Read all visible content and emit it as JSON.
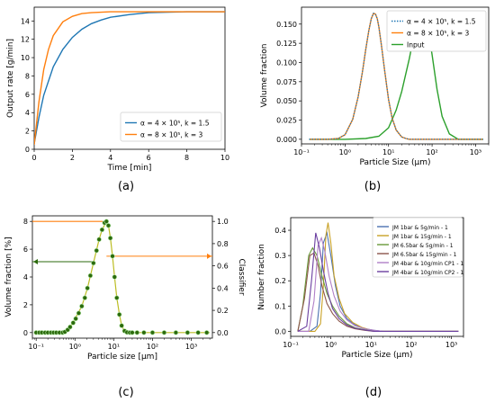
{
  "captions": [
    "(a)",
    "(b)",
    "(c)",
    "(d)"
  ],
  "legend_text": {
    "a": [
      "α = 4 × 10⁵, k = 1.5",
      "α = 8 × 10⁵, k = 3"
    ],
    "b": [
      "α = 4 × 10⁵, k = 1.5",
      "α = 8 × 10⁵, k = 3",
      "Input"
    ]
  },
  "chart_data": [
    {
      "id": "a",
      "type": "line",
      "title": "",
      "xlabel": "Time [min]",
      "ylabel": "Output rate [g/min]",
      "xlim": [
        0,
        10
      ],
      "ylim": [
        0,
        15.5
      ],
      "xticks": [
        0,
        2,
        4,
        6,
        8,
        10
      ],
      "yticks": [
        0,
        2,
        4,
        6,
        8,
        10,
        12,
        14
      ],
      "legend_position": "lower-right",
      "grid": false,
      "series": [
        {
          "name": "α = 4 × 10⁵, k = 1.5",
          "color": "#1f77b4",
          "x": [
            0,
            0.25,
            0.5,
            1,
            1.5,
            2,
            2.5,
            3,
            3.5,
            4,
            5,
            6,
            7,
            8,
            10
          ],
          "y": [
            0.6,
            3.5,
            5.9,
            9.0,
            10.9,
            12.2,
            13.1,
            13.7,
            14.1,
            14.4,
            14.7,
            14.9,
            14.95,
            15.0,
            15.0
          ]
        },
        {
          "name": "α = 8 × 10⁵, k = 3",
          "color": "#ff7f0e",
          "x": [
            0,
            0.25,
            0.5,
            0.75,
            1,
            1.5,
            2,
            2.5,
            3,
            4,
            5,
            6,
            8,
            10
          ],
          "y": [
            0.5,
            5.2,
            8.7,
            10.9,
            12.4,
            13.9,
            14.5,
            14.8,
            14.9,
            15.0,
            15.0,
            15.0,
            15.0,
            15.0
          ]
        }
      ]
    },
    {
      "id": "b",
      "type": "line",
      "title": "",
      "xlabel": "Particle Size (μm)",
      "ylabel": "Volume fraction",
      "xscale": "log",
      "xlim": [
        0.1,
        2000
      ],
      "ylim": [
        -0.006,
        0.172
      ],
      "xticks": [
        0.1,
        1,
        10,
        100,
        1000
      ],
      "xticklabels": [
        "10⁻¹",
        "10⁰",
        "10¹",
        "10²",
        "10³"
      ],
      "yticks": [
        0.0,
        0.025,
        0.05,
        0.075,
        0.1,
        0.125,
        0.15
      ],
      "yticklabels": [
        "0.000",
        "0.025",
        "0.050",
        "0.075",
        "0.100",
        "0.125",
        "0.150"
      ],
      "legend_position": "top-right",
      "grid": false,
      "series": [
        {
          "name": "α = 4 × 10⁵, k = 1.5",
          "color": "#1f77b4",
          "style": "dotted",
          "x": [
            0.15,
            0.4,
            0.7,
            1,
            1.5,
            2,
            2.5,
            3,
            3.5,
            4,
            4.5,
            5,
            5.5,
            6,
            7,
            8,
            10,
            12,
            15,
            20,
            25,
            30,
            40,
            1500
          ],
          "y": [
            0,
            0,
            0.001,
            0.006,
            0.026,
            0.055,
            0.087,
            0.117,
            0.141,
            0.157,
            0.164,
            0.163,
            0.157,
            0.146,
            0.119,
            0.093,
            0.052,
            0.028,
            0.012,
            0.003,
            0.001,
            0,
            0,
            0
          ]
        },
        {
          "name": "α = 8 × 10⁵, k = 3",
          "color": "#ff7f0e",
          "style": "solid",
          "x": [
            0.15,
            0.4,
            0.7,
            1,
            1.5,
            2,
            2.5,
            3,
            3.5,
            4,
            4.5,
            5,
            5.5,
            6,
            7,
            8,
            10,
            12,
            15,
            20,
            25,
            30,
            40,
            1500
          ],
          "y": [
            0,
            0,
            0.001,
            0.006,
            0.026,
            0.055,
            0.087,
            0.117,
            0.141,
            0.157,
            0.164,
            0.163,
            0.157,
            0.146,
            0.119,
            0.093,
            0.052,
            0.028,
            0.012,
            0.003,
            0.001,
            0,
            0,
            0
          ]
        },
        {
          "name": "Input",
          "color": "#2ca02c",
          "style": "solid",
          "x": [
            0.15,
            1,
            3,
            6,
            10,
            15,
            20,
            30,
            40,
            50,
            60,
            70,
            80,
            100,
            130,
            170,
            250,
            400,
            1500
          ],
          "y": [
            0,
            0,
            0.001,
            0.004,
            0.015,
            0.038,
            0.062,
            0.105,
            0.14,
            0.158,
            0.163,
            0.158,
            0.145,
            0.11,
            0.065,
            0.03,
            0.007,
            0,
            0
          ]
        }
      ]
    },
    {
      "id": "c",
      "type": "scatter",
      "title": "",
      "xlabel": "Particle size [μm]",
      "ylabel": "Volume fraction [%]",
      "y2label": "Classifier",
      "xscale": "log",
      "xlim": [
        0.08,
        3500
      ],
      "ylim": [
        -0.4,
        8.4
      ],
      "y2lim": [
        -0.05,
        1.05
      ],
      "xticks": [
        0.1,
        1,
        10,
        100,
        1000
      ],
      "xticklabels": [
        "10⁻¹",
        "10⁰",
        "10¹",
        "10²",
        "10³"
      ],
      "yticks": [
        0,
        2,
        4,
        6,
        8
      ],
      "y2ticks": [
        0.0,
        0.2,
        0.4,
        0.6,
        0.8,
        1.0
      ],
      "y2ticklabels": [
        "0.0",
        "0.2",
        "0.4",
        "0.6",
        "0.8",
        "1.0"
      ],
      "grid": false,
      "series": [
        {
          "name": "",
          "color": "#2b6a0c",
          "kind": "points",
          "x": [
            0.1,
            0.12,
            0.14,
            0.17,
            0.2,
            0.24,
            0.28,
            0.33,
            0.4,
            0.48,
            0.55,
            0.65,
            0.75,
            0.9,
            1.05,
            1.25,
            1.5,
            1.8,
            2.1,
            2.5,
            3.0,
            3.6,
            4.2,
            5.0,
            5.8,
            6.5,
            7.3,
            8.2,
            9.3,
            10.5,
            12,
            14,
            16,
            19,
            22,
            26,
            30,
            40,
            60,
            100,
            200,
            400,
            800,
            1500,
            2500
          ],
          "y": [
            0,
            0,
            0,
            0,
            0,
            0,
            0,
            0,
            0,
            0,
            0.05,
            0.2,
            0.4,
            0.7,
            1.0,
            1.4,
            1.9,
            2.5,
            3.2,
            4.1,
            5.0,
            5.9,
            6.7,
            7.4,
            7.9,
            8.0,
            7.7,
            6.8,
            5.5,
            4.0,
            2.5,
            1.3,
            0.5,
            0.12,
            0.02,
            0,
            0,
            0,
            0,
            0,
            0,
            0,
            0,
            0,
            0
          ]
        },
        {
          "name": "",
          "color": "#bcbd22",
          "kind": "line",
          "x": [
            0.5,
            0.75,
            1.0,
            1.5,
            2.1,
            3.0,
            4.2,
            5.0,
            6.5,
            7.3,
            8.2,
            9.3,
            10.5,
            12,
            14,
            16,
            19,
            22,
            26,
            3000
          ],
          "y": [
            0,
            0.4,
            1.0,
            1.9,
            3.2,
            5.0,
            6.7,
            7.4,
            8.0,
            7.7,
            6.8,
            5.5,
            4.0,
            2.5,
            1.3,
            0.5,
            0.12,
            0.02,
            0,
            0
          ]
        }
      ],
      "arrows": [
        {
          "direction": "left",
          "color": "#2b6a0c",
          "y": 5.1,
          "x_from": 3.2,
          "x_to": 0.08
        },
        {
          "direction": "right",
          "color": "#ff7f0e",
          "y": 5.5,
          "x_from": 6.5,
          "x_to": 3500
        }
      ],
      "classifier_line": {
        "color": "#ff7f0e",
        "y2": 1.0,
        "x_from": 0.08,
        "x_to": 5.2
      }
    },
    {
      "id": "d",
      "type": "line",
      "title": "",
      "xlabel": "Particle Size (μm)",
      "ylabel": "Number fraction",
      "xscale": "log",
      "xlim": [
        0.1,
        2000
      ],
      "ylim": [
        -0.02,
        0.45
      ],
      "xticks": [
        0.1,
        1,
        10,
        100,
        1000
      ],
      "xticklabels": [
        "10⁻¹",
        "10⁰",
        "10¹",
        "10²",
        "10³"
      ],
      "yticks": [
        0.0,
        0.1,
        0.2,
        0.3,
        0.4
      ],
      "yticklabels": [
        "0.0",
        "0.1",
        "0.2",
        "0.3",
        "0.4"
      ],
      "legend_position": "top-right",
      "grid": false,
      "series": [
        {
          "name": "JM 1bar &  5g/min - 1",
          "color": "#4c72b0",
          "x": [
            0.15,
            0.3,
            0.45,
            0.55,
            0.65,
            0.8,
            1.0,
            1.3,
            1.7,
            2.5,
            4,
            7,
            12,
            20,
            40,
            1500
          ],
          "y": [
            0,
            0,
            0.02,
            0.15,
            0.35,
            0.39,
            0.3,
            0.18,
            0.1,
            0.05,
            0.025,
            0.01,
            0.004,
            0,
            0,
            0
          ]
        },
        {
          "name": "JM 1bar &  15g/min - 1",
          "color": "#c9a227",
          "x": [
            0.15,
            0.4,
            0.55,
            0.65,
            0.75,
            0.85,
            1.0,
            1.2,
            1.6,
            2.2,
            3.5,
            6,
            10,
            16,
            40,
            1500
          ],
          "y": [
            0,
            0,
            0.03,
            0.18,
            0.38,
            0.43,
            0.35,
            0.22,
            0.13,
            0.07,
            0.035,
            0.015,
            0.005,
            0,
            0,
            0
          ]
        },
        {
          "name": "JM 6.5bar &  5g/min - 1",
          "color": "#6a9a3a",
          "x": [
            0.15,
            0.2,
            0.28,
            0.35,
            0.45,
            0.6,
            0.8,
            1.1,
            1.6,
            2.5,
            4,
            7,
            12,
            20,
            1500
          ],
          "y": [
            0,
            0.1,
            0.3,
            0.33,
            0.3,
            0.22,
            0.15,
            0.1,
            0.06,
            0.03,
            0.014,
            0.006,
            0.002,
            0,
            0
          ]
        },
        {
          "name": "JM 6.5bar &  15g/min - 1",
          "color": "#8c564b",
          "x": [
            0.15,
            0.22,
            0.3,
            0.38,
            0.48,
            0.6,
            0.8,
            1.1,
            1.6,
            2.5,
            4,
            7,
            12,
            1500
          ],
          "y": [
            0,
            0.13,
            0.3,
            0.31,
            0.26,
            0.18,
            0.11,
            0.07,
            0.04,
            0.02,
            0.01,
            0.004,
            0,
            0
          ]
        },
        {
          "name": "JM 4bar &  10g/min CP1 - 1",
          "color": "#b07fc7",
          "x": [
            0.15,
            0.28,
            0.38,
            0.48,
            0.58,
            0.7,
            0.9,
            1.2,
            1.7,
            2.5,
            4,
            7,
            12,
            20,
            1500
          ],
          "y": [
            0,
            0,
            0.12,
            0.34,
            0.37,
            0.32,
            0.22,
            0.14,
            0.08,
            0.045,
            0.022,
            0.01,
            0.004,
            0,
            0
          ]
        },
        {
          "name": "JM 4bar &  10g/min CP2 - 1",
          "color": "#6b3fa0",
          "x": [
            0.15,
            0.25,
            0.33,
            0.42,
            0.52,
            0.65,
            0.85,
            1.1,
            1.6,
            2.5,
            4,
            7,
            12,
            1500
          ],
          "y": [
            0,
            0.02,
            0.2,
            0.39,
            0.33,
            0.24,
            0.15,
            0.09,
            0.05,
            0.025,
            0.012,
            0.005,
            0,
            0
          ]
        }
      ]
    }
  ]
}
